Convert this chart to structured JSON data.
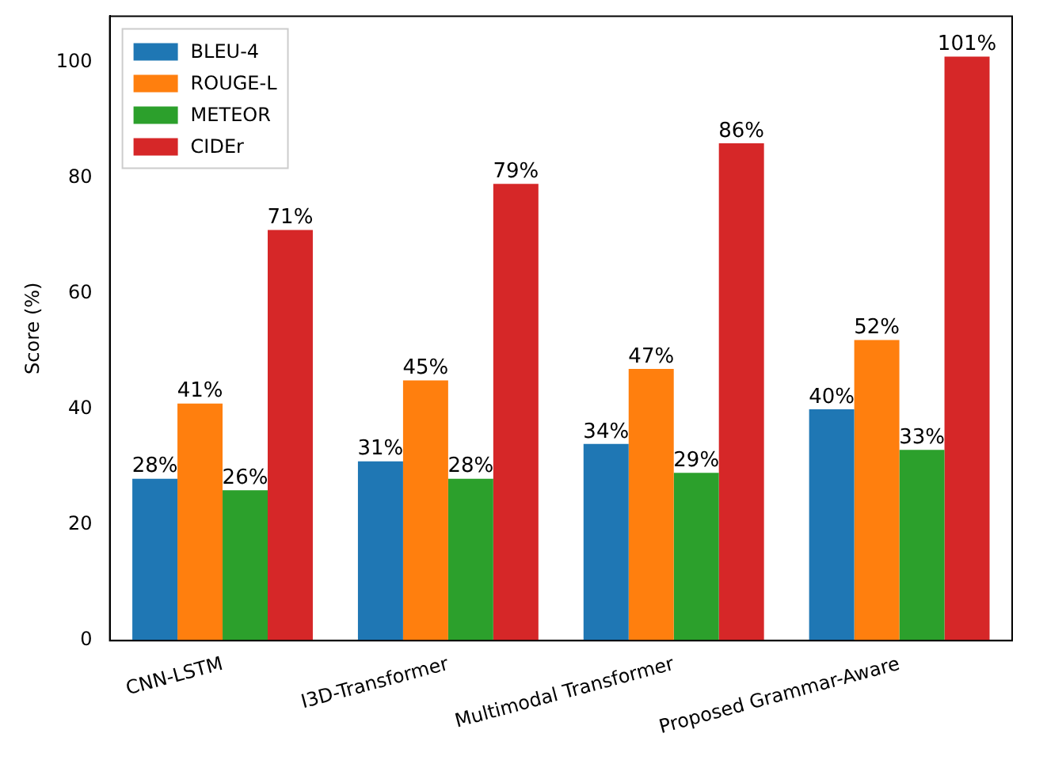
{
  "chart_data": {
    "type": "bar",
    "ylabel": "Score (%)",
    "categories": [
      "CNN-LSTM",
      "I3D-Transformer",
      "Multimodal Transformer",
      "Proposed Grammar-Aware"
    ],
    "series": [
      {
        "name": "BLEU-4",
        "color": "#1f77b4",
        "values": [
          28,
          31,
          34,
          40
        ],
        "value_labels": [
          "28%",
          "31%",
          "34%",
          "40%"
        ]
      },
      {
        "name": "ROUGE-L",
        "color": "#ff7f0e",
        "values": [
          41,
          45,
          47,
          52
        ],
        "value_labels": [
          "41%",
          "45%",
          "47%",
          "52%"
        ]
      },
      {
        "name": "METEOR",
        "color": "#2ca02c",
        "values": [
          26,
          28,
          29,
          33
        ],
        "value_labels": [
          "26%",
          "28%",
          "29%",
          "33%"
        ]
      },
      {
        "name": "CIDEr",
        "color": "#d62728",
        "values": [
          71,
          79,
          86,
          101
        ],
        "value_labels": [
          "71%",
          "79%",
          "86%",
          "101%"
        ]
      }
    ],
    "ylim": [
      0,
      108
    ],
    "yticks": [
      0,
      20,
      40,
      60,
      80,
      100
    ],
    "grid": false,
    "legend": "top left"
  }
}
